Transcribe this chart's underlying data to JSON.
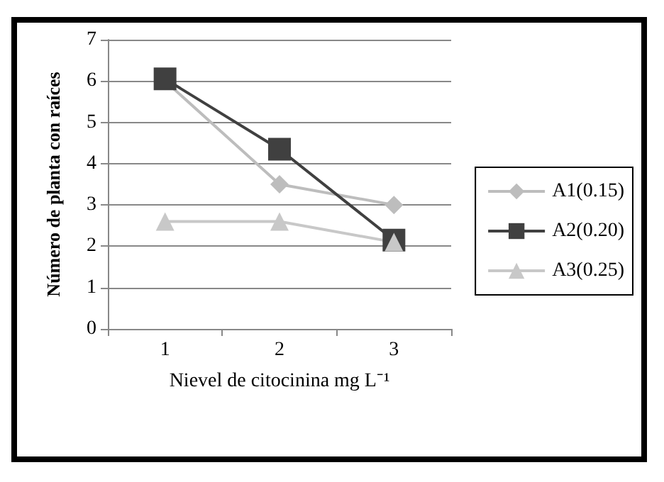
{
  "chart_data": {
    "type": "line",
    "xlabel": "Nievel de citocinina mg L⁻¹",
    "ylabel": "Número de planta con raíces",
    "categories": [
      "1",
      "2",
      "3"
    ],
    "series": [
      {
        "name": "A1(0.15)",
        "color": "#bdbdbd",
        "marker": "diamond",
        "values": [
          6,
          3.5,
          3
        ]
      },
      {
        "name": "A2(0.20)",
        "color": "#404040",
        "marker": "square",
        "values": [
          6.05,
          4.35,
          2.15
        ]
      },
      {
        "name": "A3(0.25)",
        "color": "#c8c8c8",
        "marker": "triangle",
        "values": [
          2.6,
          2.6,
          2.1
        ]
      }
    ],
    "ylim": [
      0,
      7
    ],
    "yticks": [
      0,
      1,
      2,
      3,
      4,
      5,
      6,
      7
    ],
    "grid": "y",
    "legend": "right"
  }
}
